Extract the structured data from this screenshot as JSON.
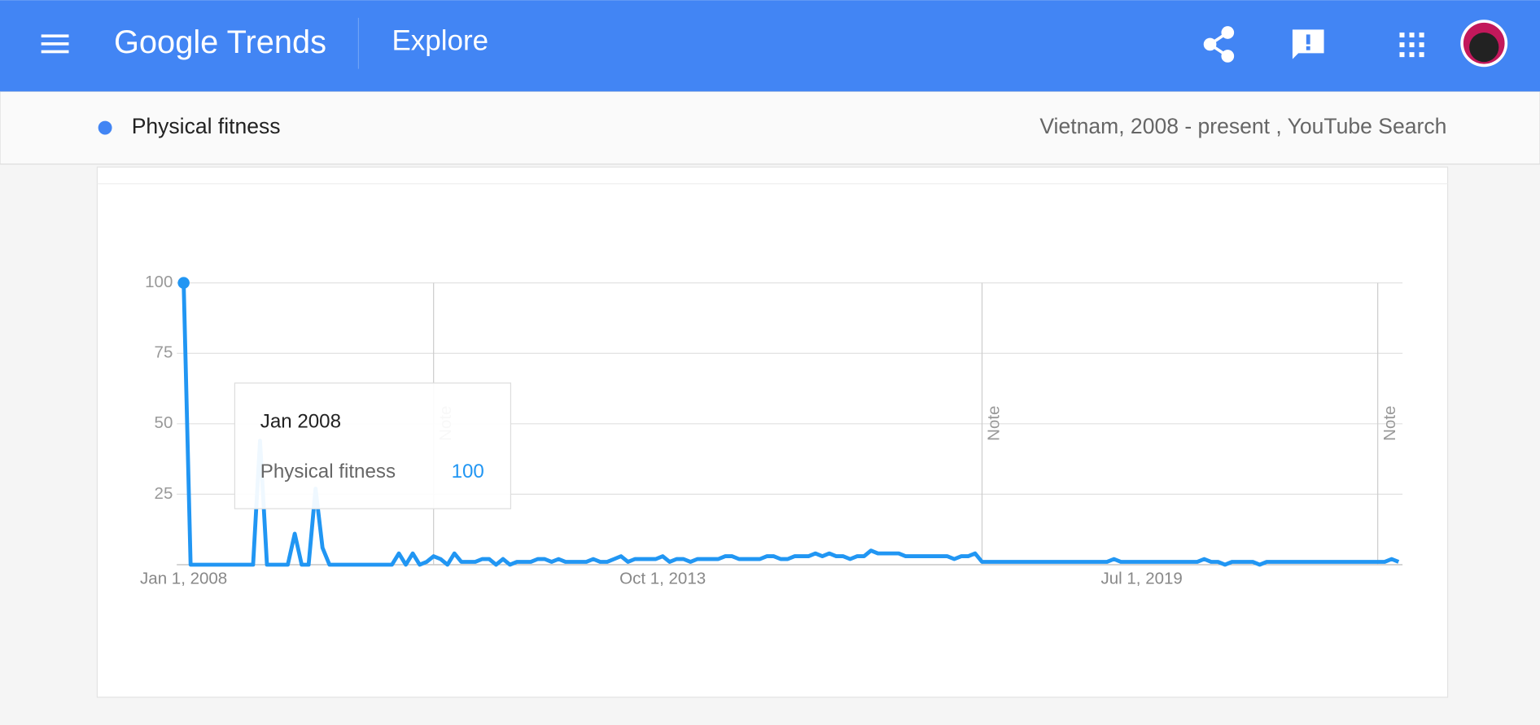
{
  "header": {
    "logo": "Google Trends",
    "page": "Explore"
  },
  "subheader": {
    "filters": "Vietnam, 2008 - present , YouTube Search"
  },
  "chart_data": {
    "type": "line",
    "categories": [
      "Jan 1, 2008",
      null,
      null,
      null,
      null,
      null,
      null,
      null,
      null,
      null,
      null,
      null,
      null,
      null,
      null,
      null,
      null,
      null,
      null,
      null,
      null,
      null,
      null,
      null,
      null,
      null,
      null,
      null,
      null,
      null,
      null,
      null,
      null,
      null,
      null,
      null,
      null,
      null,
      null,
      null,
      null,
      null,
      null,
      null,
      null,
      null,
      null,
      null,
      null,
      null,
      null,
      null,
      null,
      null,
      null,
      null,
      null,
      null,
      null,
      null,
      null,
      null,
      null,
      null,
      null,
      null,
      null,
      null,
      null,
      "Oct 1, 2013",
      null,
      null,
      null,
      null,
      null,
      null,
      null,
      null,
      null,
      null,
      null,
      null,
      null,
      null,
      null,
      null,
      null,
      null,
      null,
      null,
      null,
      null,
      null,
      null,
      null,
      null,
      null,
      null,
      null,
      null,
      null,
      null,
      null,
      null,
      null,
      null,
      null,
      null,
      null,
      null,
      null,
      null,
      null,
      null,
      null,
      null,
      null,
      null,
      null,
      null,
      null,
      null,
      null,
      null,
      null,
      null,
      null,
      null,
      null,
      null,
      null,
      null,
      null,
      null,
      null,
      null,
      null,
      null,
      "Jul 1, 2019",
      null,
      null,
      null,
      null,
      null,
      null,
      null,
      null,
      null,
      null,
      null,
      null,
      null,
      null,
      null,
      null,
      null,
      null,
      null,
      null,
      null,
      null,
      null,
      null,
      null,
      null,
      null,
      null,
      null,
      null,
      null,
      null,
      null,
      null,
      null,
      null,
      null
    ],
    "series": [
      {
        "name": "Physical fitness",
        "color": "#2196f3",
        "values": [
          100,
          0,
          0,
          0,
          0,
          0,
          0,
          0,
          0,
          0,
          0,
          44,
          0,
          0,
          0,
          0,
          11,
          0,
          0,
          27,
          6,
          0,
          0,
          0,
          0,
          0,
          0,
          0,
          0,
          0,
          0,
          4,
          0,
          4,
          0,
          1,
          3,
          2,
          0,
          4,
          1,
          1,
          1,
          2,
          2,
          0,
          2,
          0,
          1,
          1,
          1,
          2,
          2,
          1,
          2,
          1,
          1,
          1,
          1,
          2,
          1,
          1,
          2,
          3,
          1,
          2,
          2,
          2,
          2,
          3,
          1,
          2,
          2,
          1,
          2,
          2,
          2,
          2,
          3,
          3,
          2,
          2,
          2,
          2,
          3,
          3,
          2,
          2,
          3,
          3,
          3,
          4,
          3,
          4,
          3,
          3,
          2,
          3,
          3,
          5,
          4,
          4,
          4,
          4,
          3,
          3,
          3,
          3,
          3,
          3,
          3,
          2,
          3,
          3,
          4,
          1,
          1,
          1,
          1,
          1,
          1,
          1,
          1,
          1,
          1,
          1,
          1,
          1,
          1,
          1,
          1,
          1,
          1,
          1,
          2,
          1,
          1,
          1,
          1,
          1,
          1,
          1,
          1,
          1,
          1,
          1,
          1,
          2,
          1,
          1,
          0,
          1,
          1,
          1,
          1,
          0,
          1,
          1,
          1,
          1,
          1,
          1,
          1,
          1,
          1,
          1,
          1,
          1,
          1,
          1,
          1,
          1,
          1,
          1,
          2,
          1
        ]
      }
    ],
    "ylim": [
      0,
      100
    ],
    "yticks": [
      25,
      50,
      75,
      100
    ],
    "grid": true,
    "notes": [
      {
        "at": 36,
        "label": "Note"
      },
      {
        "at": 115,
        "label": "Note"
      },
      {
        "at": 172,
        "label": "Note"
      }
    ],
    "tooltip": {
      "title": "Jan 2008",
      "at": 0
    }
  }
}
